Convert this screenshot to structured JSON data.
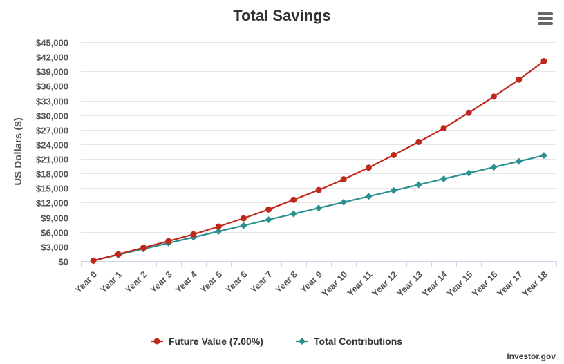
{
  "chart_data": {
    "type": "line",
    "title": "Total Savings",
    "ylabel": "US Dollars ($)",
    "xlabel": "",
    "ylim": [
      0,
      45000
    ],
    "ytick_values": [
      0,
      3000,
      6000,
      9000,
      12000,
      15000,
      18000,
      21000,
      24000,
      27000,
      30000,
      33000,
      36000,
      39000,
      42000,
      45000
    ],
    "ytick_labels": [
      "$0",
      "$3,000",
      "$6,000",
      "$9,000",
      "$12,000",
      "$15,000",
      "$18,000",
      "$21,000",
      "$24,000",
      "$27,000",
      "$30,000",
      "$33,000",
      "$36,000",
      "$39,000",
      "$42,000",
      "$45,000"
    ],
    "categories": [
      "Year 0",
      "Year 1",
      "Year 2",
      "Year 3",
      "Year 4",
      "Year 5",
      "Year 6",
      "Year 7",
      "Year 8",
      "Year 9",
      "Year 10",
      "Year 11",
      "Year 12",
      "Year 13",
      "Year 14",
      "Year 15",
      "Year 16",
      "Year 17",
      "Year 18"
    ],
    "grid": true,
    "legend": "bottom-center",
    "series": [
      {
        "name": "Future Value (7.00%)",
        "color": "#c0281c",
        "marker": "circle",
        "values": [
          100,
          1400,
          2750,
          4100,
          5500,
          7100,
          8800,
          10600,
          12600,
          14600,
          16800,
          19200,
          21800,
          24500,
          27300,
          30500,
          33800,
          37300,
          41100
        ]
      },
      {
        "name": "Total Contributions",
        "color": "#2a9090",
        "marker": "diamond",
        "values": [
          100,
          1300,
          2500,
          3700,
          4900,
          6100,
          7300,
          8500,
          9700,
          10900,
          12100,
          13300,
          14500,
          15700,
          16900,
          18100,
          19300,
          20500,
          21700
        ]
      }
    ]
  },
  "credit": "Investor.gov",
  "menu_icon": "hamburger-icon"
}
